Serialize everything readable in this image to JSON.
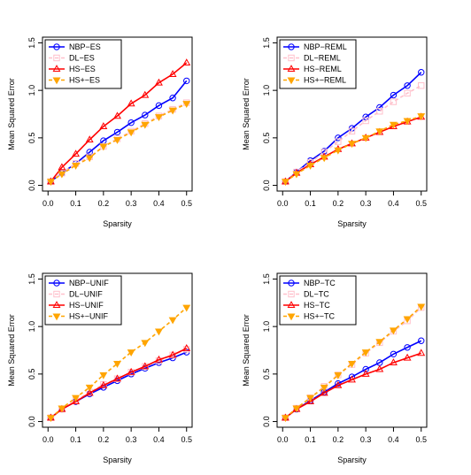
{
  "chart_data": [
    {
      "type": "line",
      "xlabel": "Sparsity",
      "ylabel": "Mean Squared Error",
      "xlim": [
        0,
        0.5
      ],
      "ylim": [
        0,
        1.5
      ],
      "x_ticks": [
        "0.0",
        "0.1",
        "0.2",
        "0.3",
        "0.4",
        "0.5"
      ],
      "y_ticks": [
        "0.0",
        "0.5",
        "1.0",
        "1.5"
      ],
      "grid": false,
      "legend_position": "top-left",
      "x": [
        0.01,
        0.05,
        0.1,
        0.15,
        0.2,
        0.25,
        0.3,
        0.35,
        0.4,
        0.45,
        0.5
      ],
      "series": [
        {
          "name": "NBP−ES",
          "color": "#0000ff",
          "marker": "circle",
          "line": "solid",
          "values": [
            0.04,
            0.13,
            0.23,
            0.35,
            0.47,
            0.56,
            0.66,
            0.74,
            0.84,
            0.92,
            1.1
          ]
        },
        {
          "name": "DL−ES",
          "color": "#ffc0cb",
          "marker": "square",
          "line": "dashed",
          "values": [
            0.04,
            0.13,
            0.23,
            0.3,
            0.41,
            0.49,
            0.57,
            0.65,
            0.73,
            0.8,
            0.87
          ]
        },
        {
          "name": "HS−ES",
          "color": "#ff0000",
          "marker": "triangle-up",
          "line": "solid",
          "values": [
            0.04,
            0.19,
            0.33,
            0.48,
            0.62,
            0.73,
            0.86,
            0.95,
            1.08,
            1.17,
            1.29
          ]
        },
        {
          "name": "HS+−ES",
          "color": "#ffa500",
          "marker": "triangle-down",
          "line": "dashed",
          "values": [
            0.04,
            0.12,
            0.21,
            0.29,
            0.41,
            0.48,
            0.56,
            0.64,
            0.72,
            0.79,
            0.86
          ]
        }
      ]
    },
    {
      "type": "line",
      "xlabel": "Sparsity",
      "ylabel": "Mean Squared Error",
      "xlim": [
        0,
        0.5
      ],
      "ylim": [
        0,
        1.5
      ],
      "x_ticks": [
        "0.0",
        "0.1",
        "0.2",
        "0.3",
        "0.4",
        "0.5"
      ],
      "y_ticks": [
        "0.0",
        "0.5",
        "1.0",
        "1.5"
      ],
      "grid": false,
      "legend_position": "top-left",
      "x": [
        0.01,
        0.05,
        0.1,
        0.15,
        0.2,
        0.25,
        0.3,
        0.35,
        0.4,
        0.45,
        0.5
      ],
      "series": [
        {
          "name": "NBP−REML",
          "color": "#0000ff",
          "marker": "circle",
          "line": "solid",
          "values": [
            0.04,
            0.14,
            0.26,
            0.36,
            0.5,
            0.6,
            0.72,
            0.82,
            0.95,
            1.05,
            1.19
          ]
        },
        {
          "name": "DL−REML",
          "color": "#ffc0cb",
          "marker": "square",
          "line": "dashed",
          "values": [
            0.04,
            0.14,
            0.24,
            0.35,
            0.46,
            0.57,
            0.68,
            0.78,
            0.88,
            0.97,
            1.05
          ]
        },
        {
          "name": "HS−REML",
          "color": "#ff0000",
          "marker": "triangle-up",
          "line": "solid",
          "values": [
            0.04,
            0.13,
            0.22,
            0.3,
            0.38,
            0.44,
            0.5,
            0.56,
            0.62,
            0.67,
            0.72
          ]
        },
        {
          "name": "HS+−REML",
          "color": "#ffa500",
          "marker": "triangle-down",
          "line": "dashed",
          "values": [
            0.04,
            0.12,
            0.21,
            0.29,
            0.37,
            0.44,
            0.5,
            0.57,
            0.64,
            0.68,
            0.73
          ]
        }
      ]
    },
    {
      "type": "line",
      "xlabel": "Sparsity",
      "ylabel": "Mean Squared Error",
      "xlim": [
        0,
        0.5
      ],
      "ylim": [
        0,
        1.5
      ],
      "x_ticks": [
        "0.0",
        "0.1",
        "0.2",
        "0.3",
        "0.4",
        "0.5"
      ],
      "y_ticks": [
        "0.0",
        "0.5",
        "1.0",
        "1.5"
      ],
      "grid": false,
      "legend_position": "top-left",
      "x": [
        0.01,
        0.05,
        0.1,
        0.15,
        0.2,
        0.25,
        0.3,
        0.35,
        0.4,
        0.45,
        0.5
      ],
      "series": [
        {
          "name": "NBP−UNIF",
          "color": "#0000ff",
          "marker": "circle",
          "line": "solid",
          "values": [
            0.04,
            0.13,
            0.21,
            0.29,
            0.36,
            0.43,
            0.5,
            0.56,
            0.62,
            0.67,
            0.73
          ]
        },
        {
          "name": "DL−UNIF",
          "color": "#ffc0cb",
          "marker": "square",
          "line": "dashed",
          "values": [
            0.04,
            0.13,
            0.22,
            0.31,
            0.39,
            0.45,
            0.52,
            0.58,
            0.64,
            0.7,
            0.76
          ]
        },
        {
          "name": "HS−UNIF",
          "color": "#ff0000",
          "marker": "triangle-up",
          "line": "solid",
          "values": [
            0.04,
            0.13,
            0.21,
            0.3,
            0.38,
            0.45,
            0.52,
            0.58,
            0.65,
            0.7,
            0.77
          ]
        },
        {
          "name": "HS+−UNIF",
          "color": "#ffa500",
          "marker": "triangle-down",
          "line": "dashed",
          "values": [
            0.04,
            0.14,
            0.25,
            0.36,
            0.49,
            0.61,
            0.73,
            0.83,
            0.95,
            1.07,
            1.2
          ]
        }
      ]
    },
    {
      "type": "line",
      "xlabel": "Sparsity",
      "ylabel": "Mean Squared Error",
      "xlim": [
        0,
        0.5
      ],
      "ylim": [
        0,
        1.5
      ],
      "x_ticks": [
        "0.0",
        "0.1",
        "0.2",
        "0.3",
        "0.4",
        "0.5"
      ],
      "y_ticks": [
        "0.0",
        "0.5",
        "1.0",
        "1.5"
      ],
      "grid": false,
      "legend_position": "top-left",
      "x": [
        0.01,
        0.05,
        0.1,
        0.15,
        0.2,
        0.25,
        0.3,
        0.35,
        0.4,
        0.45,
        0.5
      ],
      "series": [
        {
          "name": "NBP−TC",
          "color": "#0000ff",
          "marker": "circle",
          "line": "solid",
          "values": [
            0.04,
            0.13,
            0.22,
            0.31,
            0.4,
            0.47,
            0.55,
            0.62,
            0.71,
            0.78,
            0.85
          ]
        },
        {
          "name": "DL−TC",
          "color": "#ffc0cb",
          "marker": "square",
          "line": "dashed",
          "values": [
            0.04,
            0.14,
            0.25,
            0.37,
            0.49,
            0.6,
            0.72,
            0.83,
            0.95,
            1.06,
            1.2
          ]
        },
        {
          "name": "HS−TC",
          "color": "#ff0000",
          "marker": "triangle-up",
          "line": "solid",
          "values": [
            0.04,
            0.13,
            0.21,
            0.3,
            0.38,
            0.44,
            0.5,
            0.55,
            0.62,
            0.67,
            0.72
          ]
        },
        {
          "name": "HS+−TC",
          "color": "#ffa500",
          "marker": "triangle-down",
          "line": "dashed",
          "values": [
            0.04,
            0.14,
            0.25,
            0.36,
            0.49,
            0.61,
            0.73,
            0.84,
            0.96,
            1.08,
            1.21
          ]
        }
      ]
    }
  ]
}
